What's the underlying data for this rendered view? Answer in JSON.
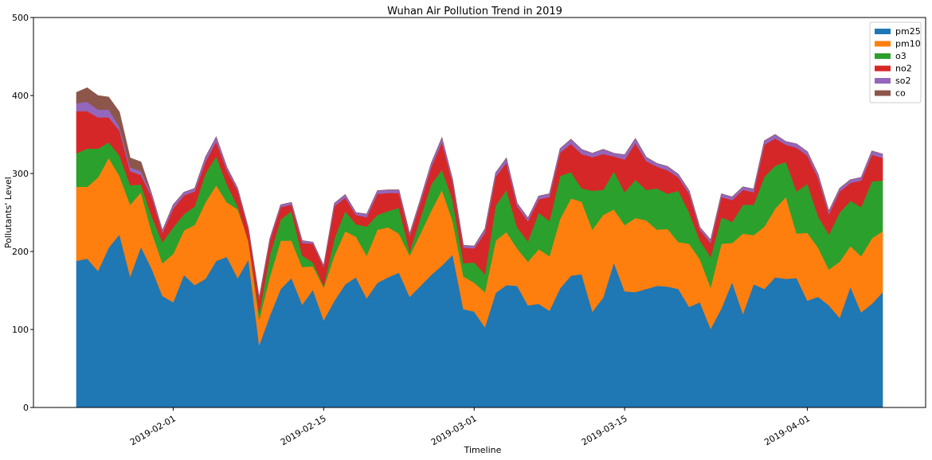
{
  "chart_data": {
    "type": "area",
    "stacked": true,
    "title": "Wuhan Air Pollution Trend in 2019",
    "xlabel": "Timeline",
    "ylabel": "Pollutants' Level",
    "ylim": [
      0,
      500
    ],
    "yticks": [
      0,
      100,
      200,
      300,
      400,
      500
    ],
    "xticks": [
      "2019-02-01",
      "2019-02-15",
      "2019-03-01",
      "2019-03-15",
      "2019-04-01"
    ],
    "x_start": "2019-01-23",
    "x_end": "2019-04-08",
    "xlim": [
      "2019-01-19",
      "2019-04-12"
    ],
    "legend_position": "top-right",
    "grid": false,
    "x": [
      "2019-01-23",
      "2019-01-24",
      "2019-01-25",
      "2019-01-26",
      "2019-01-27",
      "2019-01-28",
      "2019-01-29",
      "2019-01-30",
      "2019-01-31",
      "2019-02-01",
      "2019-02-02",
      "2019-02-03",
      "2019-02-04",
      "2019-02-05",
      "2019-02-06",
      "2019-02-07",
      "2019-02-08",
      "2019-02-09",
      "2019-02-10",
      "2019-02-11",
      "2019-02-12",
      "2019-02-13",
      "2019-02-14",
      "2019-02-15",
      "2019-02-16",
      "2019-02-17",
      "2019-02-18",
      "2019-02-19",
      "2019-02-20",
      "2019-02-21",
      "2019-02-22",
      "2019-02-23",
      "2019-02-24",
      "2019-02-25",
      "2019-02-26",
      "2019-02-27",
      "2019-02-28",
      "2019-03-01",
      "2019-03-02",
      "2019-03-03",
      "2019-03-04",
      "2019-03-05",
      "2019-03-06",
      "2019-03-07",
      "2019-03-08",
      "2019-03-09",
      "2019-03-10",
      "2019-03-11",
      "2019-03-12",
      "2019-03-13",
      "2019-03-14",
      "2019-03-15",
      "2019-03-16",
      "2019-03-17",
      "2019-03-18",
      "2019-03-19",
      "2019-03-20",
      "2019-03-21",
      "2019-03-22",
      "2019-03-23",
      "2019-03-24",
      "2019-03-25",
      "2019-03-26",
      "2019-03-27",
      "2019-03-28",
      "2019-03-29",
      "2019-03-30",
      "2019-03-31",
      "2019-04-01",
      "2019-04-02",
      "2019-04-03",
      "2019-04-04",
      "2019-04-05",
      "2019-04-06",
      "2019-04-07",
      "2019-04-08"
    ],
    "series": [
      {
        "name": "pm25",
        "color": "#1f77b4",
        "values": [
          188,
          191,
          175,
          205,
          222,
          168,
          206,
          178,
          143,
          135,
          170,
          157,
          165,
          188,
          193,
          166,
          190,
          80,
          118,
          152,
          166,
          132,
          151,
          112,
          137,
          158,
          167,
          140,
          160,
          167,
          173,
          142,
          156,
          170,
          182,
          196,
          126,
          123,
          103,
          147,
          157,
          156,
          131,
          133,
          124,
          153,
          169,
          171,
          123,
          141,
          186,
          149,
          148,
          152,
          156,
          155,
          152,
          129,
          135,
          101,
          127,
          161,
          120,
          158,
          152,
          167,
          165,
          166,
          137,
          142,
          131,
          115,
          155,
          122,
          133,
          148
        ]
      },
      {
        "name": "pm10",
        "color": "#ff7f0e",
        "values": [
          95,
          92,
          120,
          115,
          75,
          92,
          70,
          47,
          42,
          62,
          57,
          77,
          98,
          97,
          70,
          88,
          25,
          33,
          50,
          62,
          48,
          48,
          30,
          42,
          58,
          68,
          52,
          55,
          68,
          64,
          50,
          53,
          67,
          82,
          97,
          43,
          42,
          37,
          45,
          67,
          68,
          48,
          56,
          70,
          70,
          89,
          99,
          93,
          105,
          106,
          68,
          85,
          95,
          88,
          72,
          74,
          60,
          81,
          55,
          53,
          83,
          50,
          103,
          63,
          80,
          88,
          105,
          57,
          87,
          63,
          46,
          72,
          52,
          72,
          84,
          78
        ]
      },
      {
        "name": "o3",
        "color": "#2ca02c",
        "values": [
          43,
          49,
          37,
          20,
          26,
          25,
          10,
          20,
          27,
          34,
          21,
          24,
          37,
          37,
          23,
          4,
          -2,
          8,
          28,
          27,
          38,
          15,
          5,
          2,
          22,
          26,
          16,
          37,
          19,
          21,
          33,
          5,
          20,
          34,
          26,
          27,
          17,
          26,
          23,
          45,
          54,
          27,
          26,
          47,
          45,
          55,
          34,
          17,
          50,
          32,
          49,
          42,
          49,
          39,
          53,
          45,
          66,
          40,
          24,
          39,
          34,
          27,
          37,
          39,
          64,
          55,
          45,
          54,
          63,
          40,
          45,
          63,
          58,
          63,
          73,
          65
        ]
      },
      {
        "name": "no2",
        "color": "#d62728",
        "values": [
          54,
          48,
          40,
          32,
          32,
          18,
          12,
          25,
          12,
          24,
          24,
          19,
          15,
          19,
          18,
          20,
          15,
          18,
          18,
          16,
          8,
          16,
          24,
          24,
          41,
          17,
          12,
          12,
          27,
          23,
          19,
          20,
          20,
          22,
          35,
          22,
          20,
          18,
          53,
          37,
          35,
          27,
          26,
          17,
          31,
          30,
          36,
          44,
          43,
          46,
          19,
          42,
          47,
          37,
          28,
          30,
          17,
          24,
          14,
          18,
          26,
          28,
          19,
          16,
          41,
          35,
          22,
          56,
          36,
          49,
          26,
          27,
          23,
          34,
          34,
          29
        ]
      },
      {
        "name": "so2",
        "color": "#9467bd",
        "values": [
          10,
          12,
          10,
          10,
          5,
          5,
          5,
          4,
          3,
          5,
          4,
          4,
          6,
          6,
          4,
          3,
          2,
          2,
          3,
          3,
          3,
          3,
          2,
          2,
          4,
          4,
          3,
          4,
          4,
          4,
          4,
          3,
          4,
          5,
          6,
          4,
          3,
          3,
          5,
          5,
          6,
          4,
          4,
          4,
          4,
          5,
          6,
          6,
          5,
          6,
          4,
          6,
          6,
          5,
          4,
          5,
          4,
          4,
          3,
          4,
          4,
          4,
          4,
          4,
          5,
          5,
          4,
          5,
          5,
          5,
          4,
          4,
          4,
          4,
          5,
          5
        ]
      },
      {
        "name": "co",
        "color": "#8c564b",
        "values": [
          14,
          18,
          18,
          16,
          19,
          12,
          12,
          0,
          0,
          0,
          0,
          0,
          0,
          0,
          0,
          0,
          0,
          0,
          0,
          0,
          0,
          0,
          0,
          0,
          0,
          0,
          0,
          0,
          0,
          0,
          0,
          0,
          0,
          0,
          0,
          0,
          0,
          0,
          0,
          0,
          0,
          0,
          0,
          0,
          0,
          0,
          0,
          0,
          0,
          0,
          0,
          0,
          0,
          0,
          0,
          0,
          0,
          0,
          0,
          0,
          0,
          0,
          0,
          0,
          0,
          0,
          0,
          0,
          0,
          0,
          0,
          0,
          0,
          0,
          0,
          0
        ]
      }
    ]
  }
}
